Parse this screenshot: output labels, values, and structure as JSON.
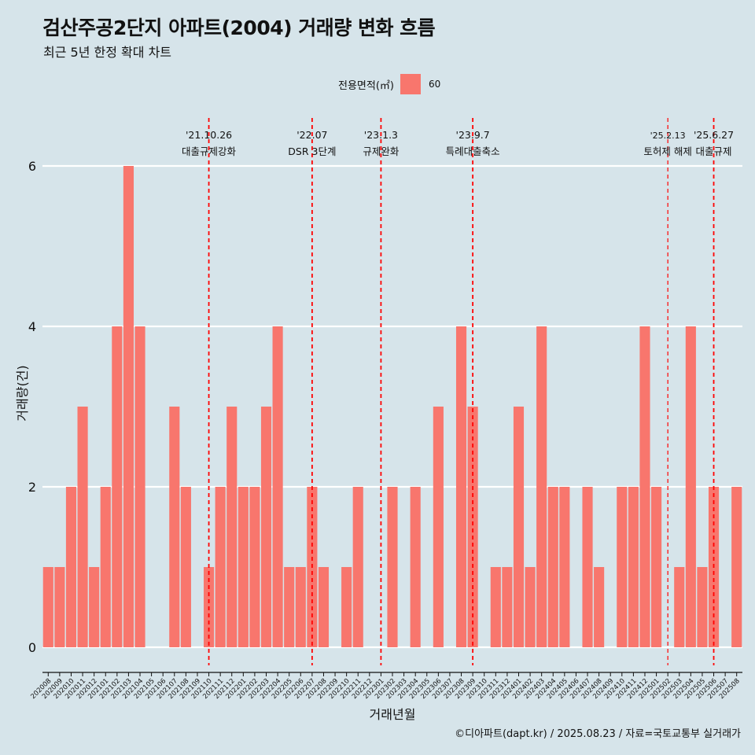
{
  "title": "검산주공2단지 아파트(2004) 거래량 변화 흐름",
  "subtitle": "최근 5년 한정 확대 차트",
  "legend": {
    "title": "전용면적(㎡)",
    "key": "60",
    "color": "#f8766d"
  },
  "caption": "©디아파트(dapt.kr) / 2025.08.23 / 자료=국토교통부 실거래가",
  "chart_data": {
    "type": "bar",
    "xlabel": "거래년월",
    "ylabel": "거래량(건)",
    "ylim": [
      -0.25,
      6.55
    ],
    "yticks": [
      0,
      2,
      4,
      6
    ],
    "grid": true,
    "legend_position": "top",
    "categories": [
      "202008",
      "202009",
      "202010",
      "202011",
      "202012",
      "202101",
      "202102",
      "202103",
      "202104",
      "202105",
      "202106",
      "202107",
      "202108",
      "202109",
      "202110",
      "202111",
      "202112",
      "202201",
      "202202",
      "202203",
      "202204",
      "202205",
      "202206",
      "202207",
      "202208",
      "202209",
      "202210",
      "202211",
      "202212",
      "202301",
      "202302",
      "202303",
      "202304",
      "202305",
      "202306",
      "202307",
      "202308",
      "202309",
      "202310",
      "202311",
      "202312",
      "202401",
      "202402",
      "202403",
      "202404",
      "202405",
      "202406",
      "202407",
      "202408",
      "202409",
      "202410",
      "202411",
      "202412",
      "202501",
      "202502",
      "202503",
      "202504",
      "202505",
      "202506",
      "202507",
      "202508"
    ],
    "series": [
      {
        "name": "60",
        "values": [
          1,
          1,
          2,
          3,
          1,
          2,
          4,
          6,
          4,
          0,
          0,
          3,
          2,
          0,
          1,
          2,
          3,
          2,
          2,
          3,
          4,
          1,
          1,
          2,
          1,
          0,
          1,
          2,
          0,
          0,
          2,
          0,
          2,
          0,
          3,
          0,
          4,
          3,
          0,
          1,
          1,
          3,
          1,
          4,
          2,
          2,
          0,
          2,
          1,
          0,
          2,
          2,
          4,
          2,
          0,
          1,
          4,
          1,
          2,
          0,
          2
        ]
      }
    ],
    "events": [
      {
        "date": "'21.10.26",
        "label": "대출규제강화",
        "position": 14.5,
        "style": "thick"
      },
      {
        "date": "'22.07",
        "label": "DSR 3단계",
        "position": 23.5,
        "style": "thick"
      },
      {
        "date": "'23.1.3",
        "label": "규제완화",
        "position": 29.5,
        "style": "thick"
      },
      {
        "date": "'23.9.7",
        "label": "특례대출축소",
        "position": 37.5,
        "style": "thick"
      },
      {
        "date": "'25.2.13",
        "label": "토허제 해제",
        "position": 54.5,
        "style": "thin"
      },
      {
        "date": "'25.6.27",
        "label": "대출규제",
        "position": 58.5,
        "style": "thick"
      }
    ]
  }
}
